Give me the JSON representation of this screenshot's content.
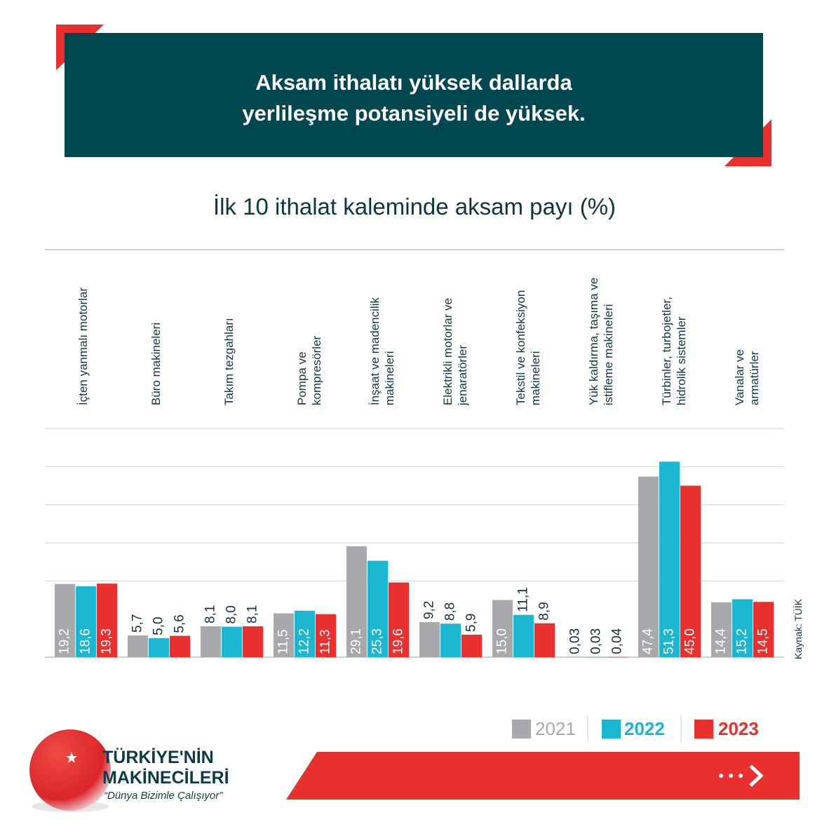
{
  "header": {
    "title": "Aksam ithalatı yüksek dallarda\nyerlileşme potansiyeli de yüksek."
  },
  "chart_data": {
    "type": "bar",
    "title": "İlk 10 ithalat kaleminde aksam payı (%)",
    "source": "Kaynak: TÜİK",
    "categories": [
      "İçten yanmalı motorlar",
      "Büro makineleri",
      "Takım tezgahları",
      "Pompa ve\nkompresörler",
      "İnşaat ve madencilik\nmakineleri",
      "Elektrikli motorlar ve\njenaratörler",
      "Tekstil ve konfeksiyon\nmakineleri",
      "Yük kaldırma, taşıma ve\nistifleme makineleri",
      "Türbinler, turbojetler,\nhidrolik sistemler",
      "Vanalar ve\narmatürler"
    ],
    "series": [
      {
        "name": "2021",
        "color": "#a7a9ac",
        "values": [
          19.2,
          5.7,
          8.1,
          11.5,
          29.1,
          9.2,
          15.0,
          0.03,
          47.4,
          14.4
        ],
        "value_labels": [
          "19,2",
          "5,7",
          "8,1",
          "11,5",
          "29,1",
          "9,2",
          "15,0",
          "0,03",
          "47,4",
          "14,4"
        ]
      },
      {
        "name": "2022",
        "color": "#1bb7d1",
        "values": [
          18.6,
          5.0,
          8.0,
          12.2,
          25.3,
          8.8,
          11.1,
          0.03,
          51.3,
          15.2
        ],
        "value_labels": [
          "18,6",
          "5,0",
          "8,0",
          "12,2",
          "25,3",
          "8,8",
          "11,1",
          "0,03",
          "51,3",
          "15,2"
        ]
      },
      {
        "name": "2023",
        "color": "#e8302e",
        "values": [
          19.3,
          5.6,
          8.1,
          11.3,
          19.6,
          5.9,
          8.9,
          0.04,
          45.0,
          14.5
        ],
        "value_labels": [
          "19,3",
          "5,6",
          "8,1",
          "11,3",
          "19,6",
          "5,9",
          "8,9",
          "0,04",
          "45,0",
          "14,5"
        ]
      }
    ],
    "ylim": [
      0,
      60
    ],
    "yticks": [
      20,
      30,
      40,
      50,
      60
    ],
    "grid": true
  },
  "footer": {
    "brand": "TÜRKİYE'NİN\nMAKİNECİLERİ",
    "tagline": "“Dünya Bizimle Çalışıyor”"
  }
}
